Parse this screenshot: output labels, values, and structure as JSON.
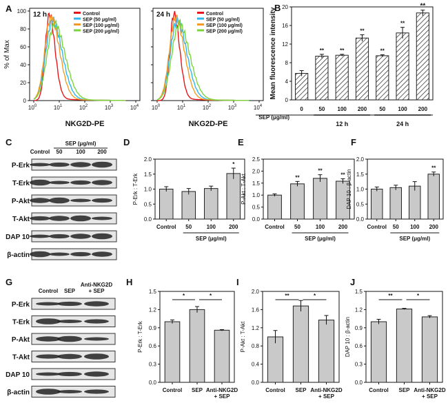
{
  "figure": {
    "id": "multi-panel-figure"
  },
  "panel_A": {
    "letter": "A",
    "ylabel": "% of Max",
    "xlabel": "NKG2D-PE",
    "y_ticks": [
      "0",
      "20",
      "40",
      "60",
      "80",
      "100"
    ],
    "x_base": "10",
    "x_exps": [
      "0",
      "1",
      "2",
      "3",
      "4"
    ],
    "legend": [
      "Control",
      "SEP (50 μg/ml)",
      "SEP (100 μg/ml)",
      "SEP (200 μg/ml)"
    ],
    "colors": [
      "#e8141a",
      "#2fb6f0",
      "#f59a24",
      "#7ad43c"
    ],
    "plots": [
      {
        "time": "12 h"
      },
      {
        "time": "24 h"
      }
    ]
  },
  "chart_data": [
    {
      "id": "B",
      "letter": "B",
      "type": "bar",
      "pattern": "hatched",
      "title": "",
      "ylabel": "Mean fluorescence intensity",
      "xlabel": "SEP (μg/ml)",
      "ylim": [
        0,
        20
      ],
      "y_ticks": [
        0,
        4,
        8,
        12,
        16,
        20
      ],
      "categories": [
        "0",
        "50",
        "100",
        "200",
        "50",
        "100",
        "200"
      ],
      "groups": [
        {
          "label": "12 h",
          "from": 1,
          "to": 3
        },
        {
          "label": "24 h",
          "from": 4,
          "to": 6
        }
      ],
      "values": [
        5.7,
        9.4,
        9.6,
        13.3,
        9.5,
        14.4,
        18.7
      ],
      "errors": [
        0.6,
        0.4,
        0.2,
        0.7,
        0.2,
        1.2,
        0.6
      ],
      "sig": [
        "",
        "**",
        "**",
        "**",
        "**",
        "**",
        "**"
      ]
    },
    {
      "id": "D",
      "letter": "D",
      "type": "bar",
      "ylabel": "P-Erk : T-Erk",
      "xlabel": "SEP (μg/ml)",
      "ylim": [
        0,
        2.0
      ],
      "y_ticks": [
        0.0,
        0.5,
        1.0,
        1.5,
        2.0
      ],
      "y_fmt": 1,
      "categories": [
        "Control",
        "50",
        "100",
        "200"
      ],
      "values": [
        1.0,
        0.92,
        1.02,
        1.52
      ],
      "errors": [
        0.08,
        0.1,
        0.08,
        0.18
      ],
      "sig": [
        "",
        "",
        "",
        "*"
      ]
    },
    {
      "id": "E",
      "letter": "E",
      "type": "bar",
      "ylabel": "P-Akt : T-Akt",
      "xlabel": "SEP (μg/ml)",
      "ylim": [
        0,
        2.5
      ],
      "y_ticks": [
        0.0,
        0.5,
        1.0,
        1.5,
        2.0,
        2.5
      ],
      "y_fmt": 1,
      "categories": [
        "Control",
        "50",
        "100",
        "200"
      ],
      "values": [
        1.0,
        1.47,
        1.7,
        1.58
      ],
      "errors": [
        0.05,
        0.1,
        0.15,
        0.1
      ],
      "sig": [
        "",
        "**",
        "**",
        "**"
      ]
    },
    {
      "id": "F",
      "letter": "F",
      "type": "bar",
      "ylabel": "DAP 10 : β-actin",
      "xlabel": "SEP (μg/ml)",
      "ylim": [
        0,
        2.0
      ],
      "y_ticks": [
        0.0,
        0.5,
        1.0,
        1.5,
        2.0
      ],
      "y_fmt": 1,
      "categories": [
        "Control",
        "50",
        "100",
        "200"
      ],
      "values": [
        1.0,
        1.05,
        1.1,
        1.5
      ],
      "errors": [
        0.07,
        0.08,
        0.15,
        0.07
      ],
      "sig": [
        "",
        "",
        "",
        "**"
      ]
    },
    {
      "id": "H",
      "letter": "H",
      "type": "bar",
      "ylabel": "P-Erk : T-Erk",
      "xlabel": "",
      "ylim": [
        0,
        1.5
      ],
      "y_ticks": [
        0.0,
        0.3,
        0.6,
        0.9,
        1.2,
        1.5
      ],
      "y_fmt": 1,
      "categories": [
        "Control",
        "SEP",
        "Anti-NKG2D\n+ SEP"
      ],
      "values": [
        1.0,
        1.2,
        0.86
      ],
      "errors": [
        0.03,
        0.05,
        0.01
      ],
      "brackets": [
        {
          "from": 0,
          "to": 1,
          "label": "*"
        },
        {
          "from": 1,
          "to": 2,
          "label": "*"
        }
      ]
    },
    {
      "id": "I",
      "letter": "I",
      "type": "bar",
      "ylabel": "P-Akt : T-Akt",
      "xlabel": "",
      "ylim": [
        0,
        2.0
      ],
      "y_ticks": [
        0.0,
        0.4,
        0.8,
        1.2,
        1.6,
        2.0
      ],
      "y_fmt": 1,
      "categories": [
        "Control",
        "SEP",
        "Anti-NKG2D\n+ SEP"
      ],
      "values": [
        1.0,
        1.68,
        1.37
      ],
      "errors": [
        0.14,
        0.12,
        0.1
      ],
      "brackets": [
        {
          "from": 0,
          "to": 1,
          "label": "**"
        },
        {
          "from": 1,
          "to": 2,
          "label": "*"
        }
      ]
    },
    {
      "id": "J",
      "letter": "J",
      "type": "bar",
      "ylabel": "DAP 10 : β-actin",
      "xlabel": "",
      "ylim": [
        0,
        1.5
      ],
      "y_ticks": [
        0.0,
        0.3,
        0.6,
        0.9,
        1.2,
        1.5
      ],
      "y_fmt": 1,
      "categories": [
        "Control",
        "SEP",
        "Anti-NKG2D\n+ SEP"
      ],
      "values": [
        1.0,
        1.21,
        1.08
      ],
      "errors": [
        0.04,
        0.01,
        0.02
      ],
      "brackets": [
        {
          "from": 0,
          "to": 1,
          "label": "**"
        },
        {
          "from": 1,
          "to": 2,
          "label": "*"
        }
      ]
    }
  ],
  "panel_C": {
    "letter": "C",
    "header": "SEP (μg/ml)",
    "columns": [
      "Control",
      "50",
      "100",
      "200"
    ],
    "rows": [
      "P-Erk",
      "T-Erk",
      "P-Akt",
      "T-Akt",
      "DAP 10",
      "β-actin"
    ]
  },
  "panel_G": {
    "letter": "G",
    "columns": [
      "Control",
      "SEP",
      "Anti-NKG2D\n+ SEP"
    ],
    "rows": [
      "P-Erk",
      "T-Erk",
      "P-Akt",
      "T-Akt",
      "DAP 10",
      "β-actin"
    ]
  }
}
